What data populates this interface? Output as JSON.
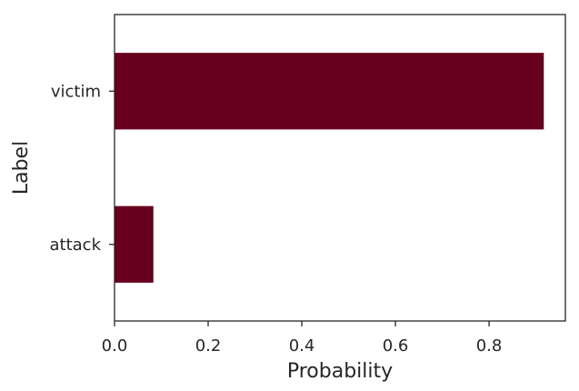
{
  "chart_data": {
    "type": "bar",
    "orientation": "horizontal",
    "categories": [
      "victim",
      "attack"
    ],
    "values": [
      0.917,
      0.083
    ],
    "xlabel": "Probability",
    "ylabel": "Label",
    "xlim": [
      0,
      0.963
    ],
    "xticks": [
      0.0,
      0.2,
      0.4,
      0.6,
      0.8
    ],
    "xtick_labels": [
      "0.0",
      "0.2",
      "0.4",
      "0.6",
      "0.8"
    ],
    "grid": false,
    "bar_color": "#67001f",
    "axis_color": "#262626"
  }
}
